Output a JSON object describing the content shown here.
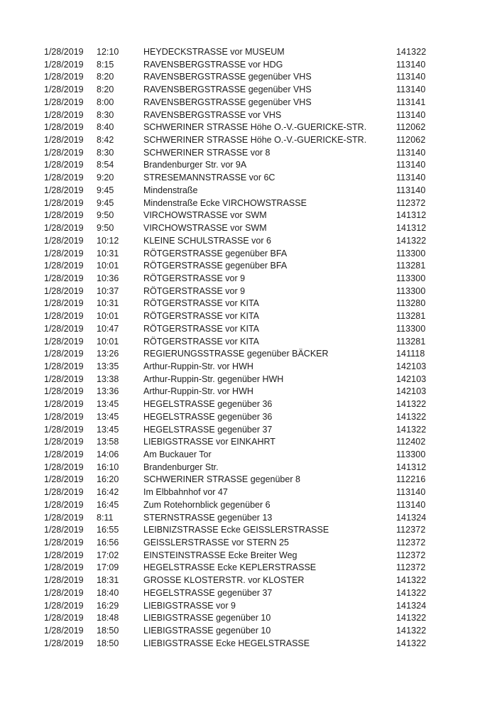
{
  "colors": {
    "text": "#1c1c1c",
    "background": "#ffffff"
  },
  "table": {
    "rows": [
      {
        "date": "1/28/2019",
        "time": "12:10",
        "location": "HEYDECKSTRASSE vor MUSEUM",
        "code": "141322"
      },
      {
        "date": "1/28/2019",
        "time": "8:15",
        "location": "RAVENSBERGSTRASSE vor HDG",
        "code": "113140"
      },
      {
        "date": "1/28/2019",
        "time": "8:20",
        "location": "RAVENSBERGSTRASSE gegenüber VHS",
        "code": "113140"
      },
      {
        "date": "1/28/2019",
        "time": "8:20",
        "location": "RAVENSBERGSTRASSE gegenüber VHS",
        "code": "113140"
      },
      {
        "date": "1/28/2019",
        "time": "8:00",
        "location": "RAVENSBERGSTRASSE gegenüber VHS",
        "code": "113141"
      },
      {
        "date": "1/28/2019",
        "time": "8:30",
        "location": "RAVENSBERGSTRASSE vor VHS",
        "code": "113140"
      },
      {
        "date": "1/28/2019",
        "time": "8:40",
        "location": "SCHWERINER STRASSE Höhe O.-V.-GUERICKE-STR.",
        "code": "112062"
      },
      {
        "date": "1/28/2019",
        "time": "8:42",
        "location": "SCHWERINER STRASSE Höhe O.-V.-GUERICKE-STR.",
        "code": "112062"
      },
      {
        "date": "1/28/2019",
        "time": "8:30",
        "location": "SCHWERINER STRASSE vor 8",
        "code": "113140"
      },
      {
        "date": "1/28/2019",
        "time": "8:54",
        "location": "Brandenburger Str. vor 9A",
        "code": "113140"
      },
      {
        "date": "1/28/2019",
        "time": "9:20",
        "location": "STRESEMANNSTRASSE vor 6C",
        "code": "113140"
      },
      {
        "date": "1/28/2019",
        "time": "9:45",
        "location": "Mindenstraße",
        "code": "113140"
      },
      {
        "date": "1/28/2019",
        "time": "9:45",
        "location": "Mindenstraße Ecke VIRCHOWSTRASSE",
        "code": "112372"
      },
      {
        "date": "1/28/2019",
        "time": "9:50",
        "location": "VIRCHOWSTRASSE vor SWM",
        "code": "141312"
      },
      {
        "date": "1/28/2019",
        "time": "9:50",
        "location": "VIRCHOWSTRASSE vor SWM",
        "code": "141312"
      },
      {
        "date": "1/28/2019",
        "time": "10:12",
        "location": "KLEINE SCHULSTRASSE vor 6",
        "code": "141322"
      },
      {
        "date": "1/28/2019",
        "time": "10:31",
        "location": "RÖTGERSTRASSE gegenüber BFA",
        "code": "113300"
      },
      {
        "date": "1/28/2019",
        "time": "10:01",
        "location": "RÖTGERSTRASSE gegenüber BFA",
        "code": "113281"
      },
      {
        "date": "1/28/2019",
        "time": "10:36",
        "location": "RÖTGERSTRASSE vor 9",
        "code": "113300"
      },
      {
        "date": "1/28/2019",
        "time": "10:37",
        "location": "RÖTGERSTRASSE vor 9",
        "code": "113300"
      },
      {
        "date": "1/28/2019",
        "time": "10:31",
        "location": "RÖTGERSTRASSE vor KITA",
        "code": "113280"
      },
      {
        "date": "1/28/2019",
        "time": "10:01",
        "location": "RÖTGERSTRASSE vor KITA",
        "code": "113281"
      },
      {
        "date": "1/28/2019",
        "time": "10:47",
        "location": "RÖTGERSTRASSE vor KITA",
        "code": "113300"
      },
      {
        "date": "1/28/2019",
        "time": "10:01",
        "location": "RÖTGERSTRASSE vor KITA",
        "code": "113281"
      },
      {
        "date": "1/28/2019",
        "time": "13:26",
        "location": "REGIERUNGSSTRASSE gegenüber BÄCKER",
        "code": "141118"
      },
      {
        "date": "1/28/2019",
        "time": "13:35",
        "location": "Arthur-Ruppin-Str. vor HWH",
        "code": "142103"
      },
      {
        "date": "1/28/2019",
        "time": "13:38",
        "location": "Arthur-Ruppin-Str. gegenüber HWH",
        "code": "142103"
      },
      {
        "date": "1/28/2019",
        "time": "13:36",
        "location": "Arthur-Ruppin-Str. vor HWH",
        "code": "142103"
      },
      {
        "date": "1/28/2019",
        "time": "13:45",
        "location": "HEGELSTRASSE gegenüber 36",
        "code": "141322"
      },
      {
        "date": "1/28/2019",
        "time": "13:45",
        "location": "HEGELSTRASSE gegenüber 36",
        "code": "141322"
      },
      {
        "date": "1/28/2019",
        "time": "13:45",
        "location": "HEGELSTRASSE gegenüber 37",
        "code": "141322"
      },
      {
        "date": "1/28/2019",
        "time": "13:58",
        "location": "LIEBIGSTRASSE vor EINKAHRT",
        "code": "112402"
      },
      {
        "date": "1/28/2019",
        "time": "14:06",
        "location": "Am Buckauer Tor",
        "code": "113300"
      },
      {
        "date": "1/28/2019",
        "time": "16:10",
        "location": "Brandenburger Str.",
        "code": "141312"
      },
      {
        "date": "1/28/2019",
        "time": "16:20",
        "location": "SCHWERINER STRASSE gegenüber 8",
        "code": "112216"
      },
      {
        "date": "1/28/2019",
        "time": "16:42",
        "location": "Im Elbbahnhof vor 47",
        "code": "113140"
      },
      {
        "date": "1/28/2019",
        "time": "16:45",
        "location": "Zum Rotehornblick gegenüber 6",
        "code": "113140"
      },
      {
        "date": "1/28/2019",
        "time": "8:11",
        "location": "STERNSTRASSE gegenüber 13",
        "code": "141324"
      },
      {
        "date": "1/28/2019",
        "time": "16:55",
        "location": "LEIBNIZSTRASSE Ecke GEISSLERSTRASSE",
        "code": "112372"
      },
      {
        "date": "1/28/2019",
        "time": "16:56",
        "location": "GEISSLERSTRASSE vor STERN 25",
        "code": "112372"
      },
      {
        "date": "1/28/2019",
        "time": "17:02",
        "location": "EINSTEINSTRASSE Ecke Breiter Weg",
        "code": "112372"
      },
      {
        "date": "1/28/2019",
        "time": "17:09",
        "location": "HEGELSTRASSE Ecke KEPLERSTRASSE",
        "code": "112372"
      },
      {
        "date": "1/28/2019",
        "time": "18:31",
        "location": "GROSSE KLOSTERSTR. vor KLOSTER",
        "code": "141322"
      },
      {
        "date": "1/28/2019",
        "time": "18:40",
        "location": "HEGELSTRASSE gegenüber 37",
        "code": "141322"
      },
      {
        "date": "1/28/2019",
        "time": "16:29",
        "location": "LIEBIGSTRASSE vor 9",
        "code": "141324"
      },
      {
        "date": "1/28/2019",
        "time": "18:48",
        "location": "LIEBIGSTRASSE gegenüber 10",
        "code": "141322"
      },
      {
        "date": "1/28/2019",
        "time": "18:50",
        "location": "LIEBIGSTRASSE gegenüber 10",
        "code": "141322"
      },
      {
        "date": "1/28/2019",
        "time": "18:50",
        "location": "LIEBIGSTRASSE Ecke HEGELSTRASSE",
        "code": "141322"
      }
    ]
  }
}
